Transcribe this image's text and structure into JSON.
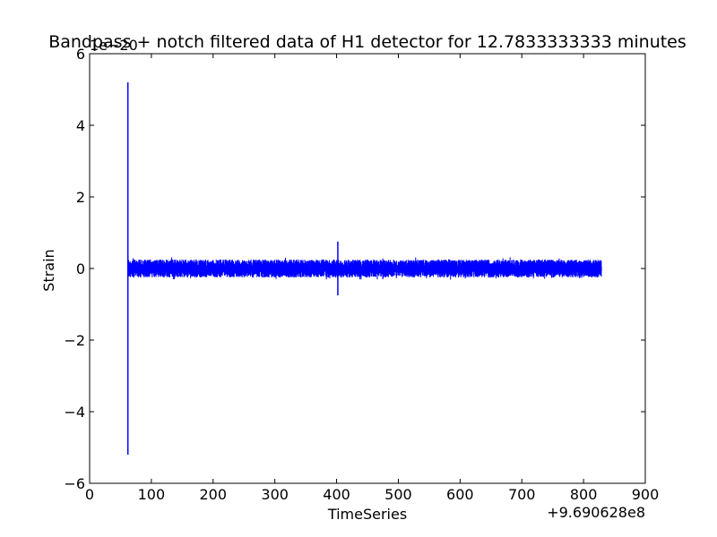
{
  "chart_data": {
    "type": "line",
    "title": "Bandpass + notch filtered data of H1 detector for 12.7833333333 minutes",
    "xlabel": "TimeSeries",
    "ylabel": "Strain",
    "x_offset_label": "+9.690628e8",
    "y_scale_label": "1e−20",
    "xlim": [
      0,
      900
    ],
    "ylim": [
      -6,
      6
    ],
    "x_ticks": [
      0,
      100,
      200,
      300,
      400,
      500,
      600,
      700,
      800,
      900
    ],
    "x_tick_labels": [
      "0",
      "100",
      "200",
      "300",
      "400",
      "500",
      "600",
      "700",
      "800",
      "900"
    ],
    "y_ticks": [
      -6,
      -4,
      -2,
      0,
      2,
      4,
      6
    ],
    "y_tick_labels": [
      "−6",
      "−4",
      "−2",
      "0",
      "2",
      "4",
      "6"
    ],
    "grid": false,
    "colors": {
      "series": "#0000ff",
      "axes": "#000000",
      "background": "#ffffff"
    },
    "series": [
      {
        "x_range": [
          62,
          829
        ],
        "baseline_band": [
          -0.25,
          0.25
        ],
        "spikes": [
          {
            "x": 62,
            "y_min": -5.2,
            "y_max": 5.2
          },
          {
            "x": 402,
            "y_min": -0.75,
            "y_max": 0.75
          }
        ]
      }
    ]
  }
}
